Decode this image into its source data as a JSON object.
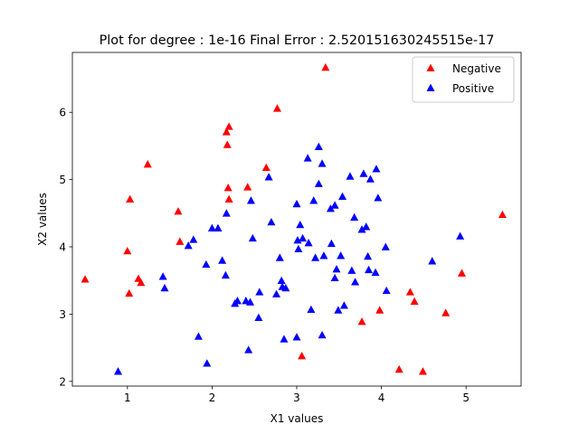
{
  "chart_data": {
    "type": "scatter",
    "title": "Plot for degree : 1e-16 Final Error : 2.520151630245515e-17",
    "xlabel": "X1 values",
    "ylabel": "X2 values",
    "xlim": [
      0.35,
      5.65
    ],
    "ylim": [
      1.93,
      6.89
    ],
    "xticks": [
      1,
      2,
      3,
      4,
      5
    ],
    "yticks": [
      2,
      3,
      4,
      5,
      6
    ],
    "grid": false,
    "legend_position": "top-right",
    "marker": "triangle-up",
    "series": [
      {
        "name": "Negative",
        "color": "#ff0000",
        "points": [
          [
            0.5,
            3.52
          ],
          [
            1.0,
            3.94
          ],
          [
            1.02,
            3.31
          ],
          [
            1.03,
            4.71
          ],
          [
            1.13,
            3.53
          ],
          [
            1.16,
            3.47
          ],
          [
            1.24,
            5.23
          ],
          [
            1.6,
            4.53
          ],
          [
            1.62,
            4.08
          ],
          [
            2.17,
            5.71
          ],
          [
            2.18,
            5.52
          ],
          [
            2.19,
            4.88
          ],
          [
            2.2,
            5.79
          ],
          [
            2.2,
            4.71
          ],
          [
            2.42,
            4.89
          ],
          [
            2.64,
            5.18
          ],
          [
            2.77,
            6.06
          ],
          [
            3.06,
            2.38
          ],
          [
            3.34,
            6.67
          ],
          [
            3.77,
            2.89
          ],
          [
            3.98,
            3.06
          ],
          [
            4.21,
            2.18
          ],
          [
            4.34,
            3.33
          ],
          [
            4.39,
            3.19
          ],
          [
            4.49,
            2.15
          ],
          [
            4.76,
            3.02
          ],
          [
            4.95,
            3.61
          ],
          [
            5.43,
            4.48
          ]
        ]
      },
      {
        "name": "Positive",
        "color": "#0000ff",
        "points": [
          [
            0.89,
            2.15
          ],
          [
            1.42,
            3.56
          ],
          [
            1.44,
            3.39
          ],
          [
            1.72,
            4.02
          ],
          [
            1.78,
            4.11
          ],
          [
            1.84,
            2.67
          ],
          [
            1.93,
            3.74
          ],
          [
            1.94,
            2.27
          ],
          [
            2.0,
            4.28
          ],
          [
            2.07,
            4.28
          ],
          [
            2.12,
            3.8
          ],
          [
            2.16,
            3.58
          ],
          [
            2.17,
            4.5
          ],
          [
            2.27,
            3.16
          ],
          [
            2.3,
            3.2
          ],
          [
            2.4,
            3.2
          ],
          [
            2.43,
            2.47
          ],
          [
            2.45,
            3.18
          ],
          [
            2.46,
            4.69
          ],
          [
            2.48,
            4.13
          ],
          [
            2.55,
            2.95
          ],
          [
            2.56,
            3.33
          ],
          [
            2.67,
            5.04
          ],
          [
            2.7,
            4.37
          ],
          [
            2.76,
            3.3
          ],
          [
            2.8,
            3.84
          ],
          [
            2.82,
            3.5
          ],
          [
            2.83,
            3.41
          ],
          [
            2.85,
            2.63
          ],
          [
            2.87,
            3.39
          ],
          [
            3.0,
            2.66
          ],
          [
            3.0,
            4.64
          ],
          [
            3.01,
            4.1
          ],
          [
            3.02,
            3.97
          ],
          [
            3.04,
            4.33
          ],
          [
            3.07,
            4.13
          ],
          [
            3.13,
            5.32
          ],
          [
            3.14,
            4.06
          ],
          [
            3.17,
            3.07
          ],
          [
            3.2,
            4.69
          ],
          [
            3.22,
            3.84
          ],
          [
            3.26,
            4.94
          ],
          [
            3.26,
            5.49
          ],
          [
            3.3,
            5.24
          ],
          [
            3.3,
            2.69
          ],
          [
            3.32,
            3.87
          ],
          [
            3.4,
            4.57
          ],
          [
            3.41,
            4.05
          ],
          [
            3.45,
            3.54
          ],
          [
            3.45,
            4.62
          ],
          [
            3.47,
            3.67
          ],
          [
            3.49,
            3.06
          ],
          [
            3.52,
            3.87
          ],
          [
            3.54,
            4.75
          ],
          [
            3.56,
            3.13
          ],
          [
            3.63,
            5.05
          ],
          [
            3.65,
            3.65
          ],
          [
            3.68,
            4.44
          ],
          [
            3.69,
            3.48
          ],
          [
            3.77,
            4.26
          ],
          [
            3.79,
            5.09
          ],
          [
            3.82,
            4.3
          ],
          [
            3.84,
            3.86
          ],
          [
            3.85,
            3.66
          ],
          [
            3.87,
            5.01
          ],
          [
            3.93,
            3.62
          ],
          [
            3.94,
            5.16
          ],
          [
            3.96,
            4.73
          ],
          [
            4.05,
            4.0
          ],
          [
            4.06,
            3.35
          ],
          [
            4.6,
            3.79
          ],
          [
            4.93,
            4.16
          ]
        ]
      }
    ]
  }
}
